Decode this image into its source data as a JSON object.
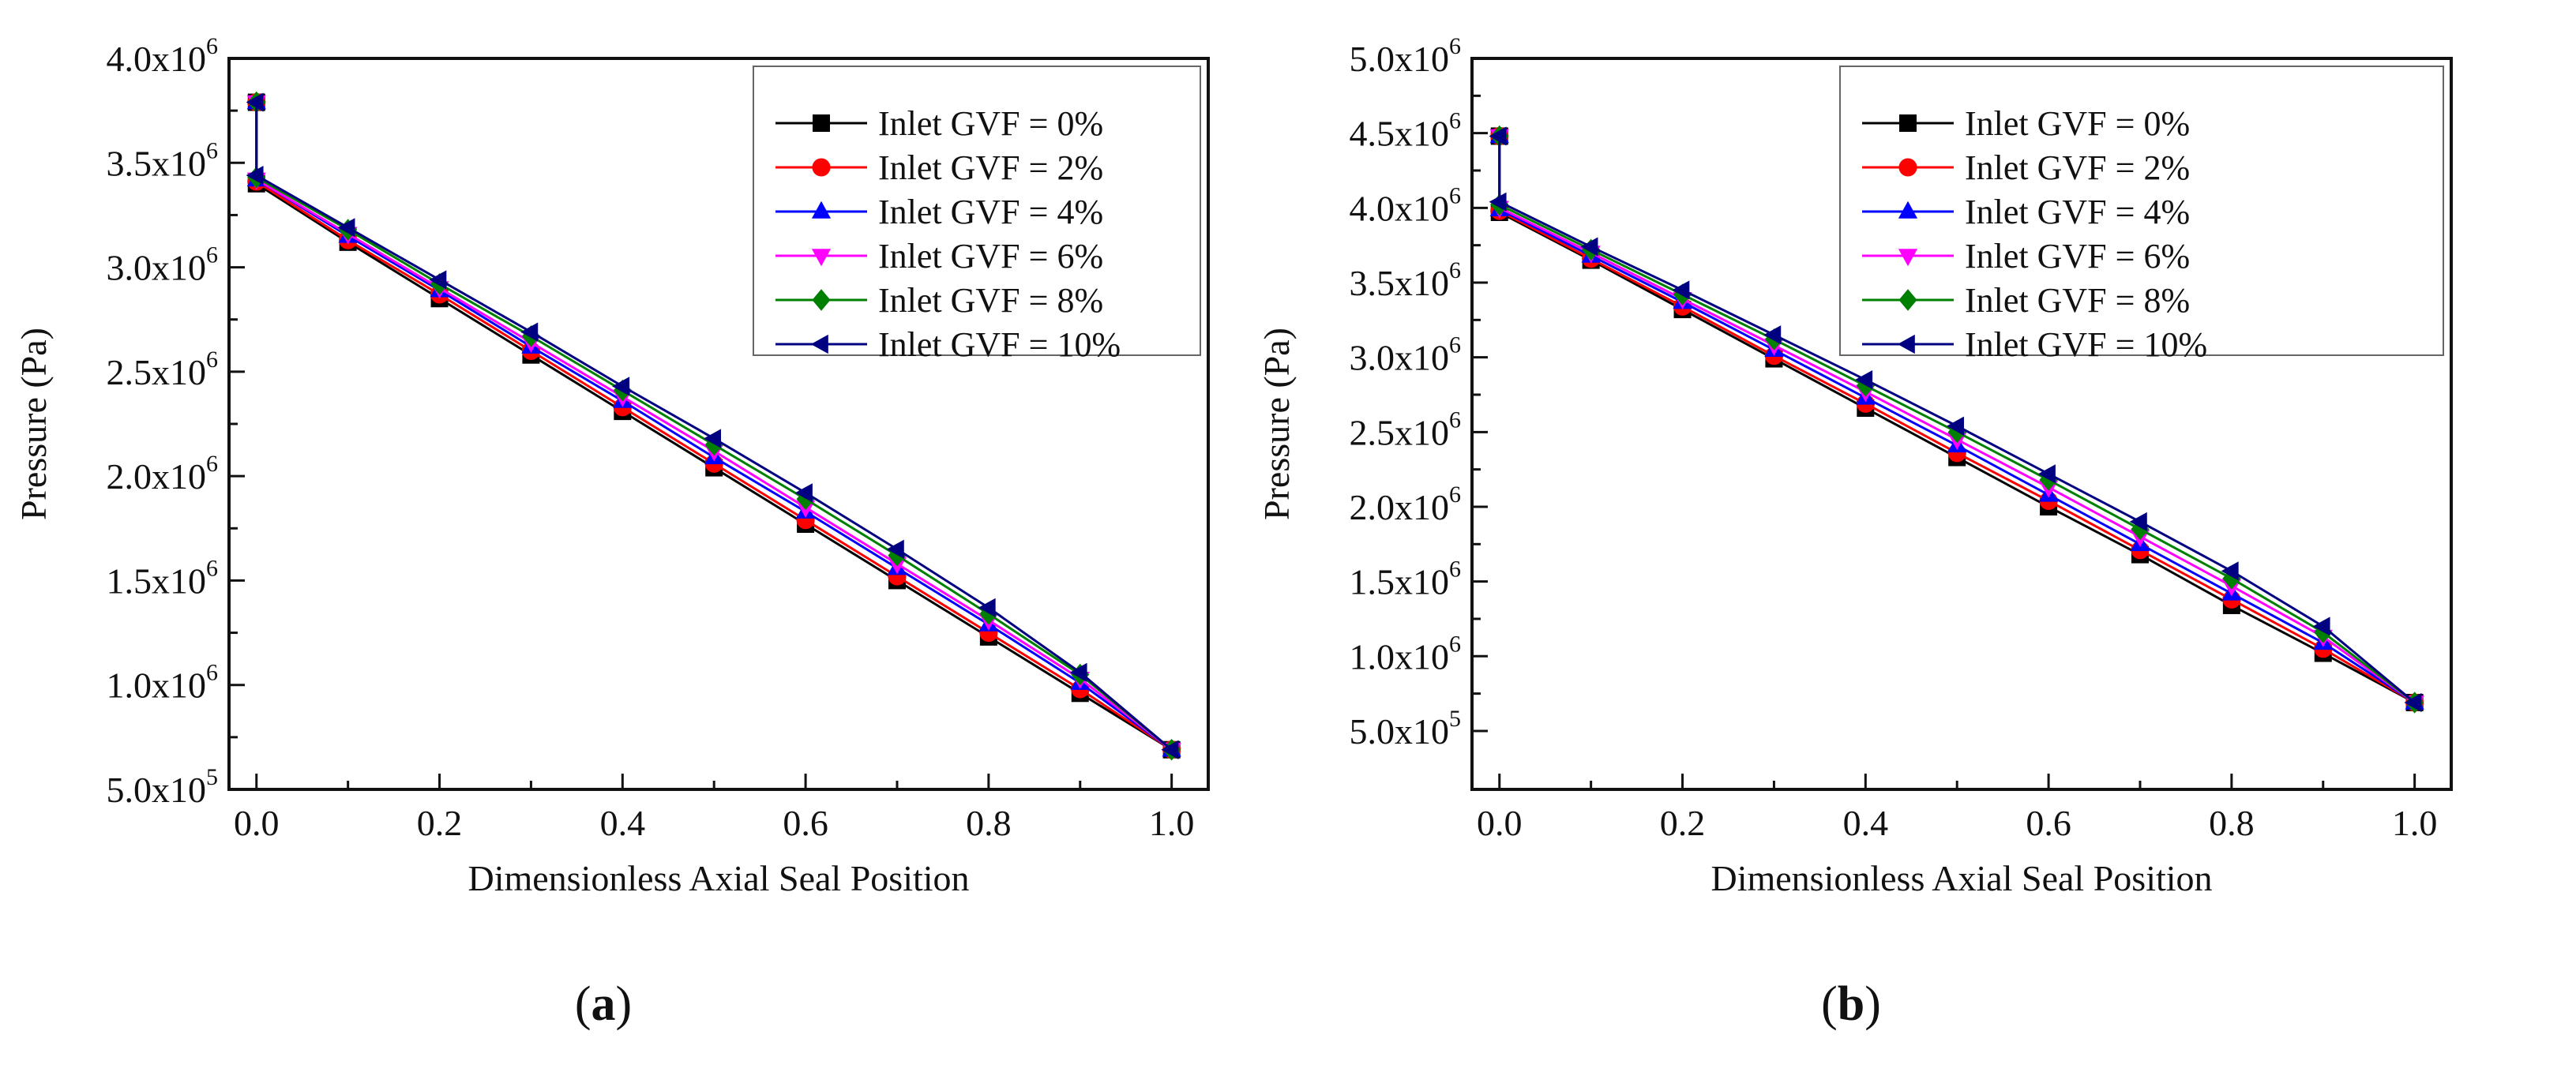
{
  "chart_data": [
    {
      "type": "line",
      "panel_label": "a",
      "xlabel": "Dimensionless Axial Seal Position",
      "ylabel": "Pressure (Pa)",
      "xlim": [
        -0.03,
        1.04
      ],
      "ylim": [
        500000,
        4000000
      ],
      "x_ticks": [
        {
          "value": 0,
          "label": "0.0"
        },
        {
          "value": 0.2,
          "label": "0.2"
        },
        {
          "value": 0.4,
          "label": "0.4"
        },
        {
          "value": 0.6,
          "label": "0.6"
        },
        {
          "value": 0.8,
          "label": "0.8"
        },
        {
          "value": 1.0,
          "label": "1.0"
        }
      ],
      "y_ticks": [
        {
          "value": 500000,
          "mantissa": "5.0x10",
          "exp": "5"
        },
        {
          "value": 1000000,
          "mantissa": "1.0x10",
          "exp": "6"
        },
        {
          "value": 1500000,
          "mantissa": "1.5x10",
          "exp": "6"
        },
        {
          "value": 2000000,
          "mantissa": "2.0x10",
          "exp": "6"
        },
        {
          "value": 2500000,
          "mantissa": "2.5x10",
          "exp": "6"
        },
        {
          "value": 3000000,
          "mantissa": "3.0x10",
          "exp": "6"
        },
        {
          "value": 3500000,
          "mantissa": "3.5x10",
          "exp": "6"
        },
        {
          "value": 4000000,
          "mantissa": "4.0x10",
          "exp": "6"
        }
      ],
      "legend_position": "top-right",
      "x": [
        0,
        0,
        0.1,
        0.2,
        0.3,
        0.4,
        0.5,
        0.6,
        0.7,
        0.8,
        0.9,
        1.0
      ],
      "series": [
        {
          "name": "Inlet GVF = 0%",
          "color": "#000000",
          "marker": "square",
          "values": [
            3790000,
            3400000,
            3120000,
            2850000,
            2580000,
            2310000,
            2040000,
            1770000,
            1500000,
            1230000,
            960000,
            690000
          ]
        },
        {
          "name": "Inlet GVF = 2%",
          "color": "#ff0000",
          "marker": "circle",
          "values": [
            3790000,
            3410000,
            3130000,
            2870000,
            2600000,
            2330000,
            2060000,
            1790000,
            1520000,
            1250000,
            980000,
            690000
          ]
        },
        {
          "name": "Inlet GVF = 4%",
          "color": "#0000ff",
          "marker": "triangle-up",
          "values": [
            3790000,
            3420000,
            3150000,
            2890000,
            2620000,
            2360000,
            2090000,
            1830000,
            1560000,
            1290000,
            1010000,
            690000
          ]
        },
        {
          "name": "Inlet GVF = 6%",
          "color": "#ff00ff",
          "marker": "triangle-down",
          "values": [
            3790000,
            3420000,
            3160000,
            2900000,
            2640000,
            2380000,
            2120000,
            1850000,
            1580000,
            1310000,
            1030000,
            690000
          ]
        },
        {
          "name": "Inlet GVF = 8%",
          "color": "#008000",
          "marker": "diamond",
          "values": [
            3790000,
            3430000,
            3180000,
            2920000,
            2670000,
            2410000,
            2150000,
            1890000,
            1620000,
            1340000,
            1050000,
            690000
          ]
        },
        {
          "name": "Inlet GVF = 10%",
          "color": "#000080",
          "marker": "triangle-left",
          "values": [
            3790000,
            3440000,
            3190000,
            2940000,
            2690000,
            2430000,
            2180000,
            1920000,
            1650000,
            1370000,
            1060000,
            690000
          ]
        }
      ]
    },
    {
      "type": "line",
      "panel_label": "b",
      "xlabel": "Dimensionless Axial Seal Position",
      "ylabel": "Pressure (Pa)",
      "xlim": [
        -0.03,
        1.04
      ],
      "ylim": [
        109000,
        5000000
      ],
      "x_ticks": [
        {
          "value": 0,
          "label": "0.0"
        },
        {
          "value": 0.2,
          "label": "0.2"
        },
        {
          "value": 0.4,
          "label": "0.4"
        },
        {
          "value": 0.6,
          "label": "0.6"
        },
        {
          "value": 0.8,
          "label": "0.8"
        },
        {
          "value": 1.0,
          "label": "1.0"
        }
      ],
      "y_ticks": [
        {
          "value": 500000,
          "mantissa": "5.0x10",
          "exp": "5"
        },
        {
          "value": 1000000,
          "mantissa": "1.0x10",
          "exp": "6"
        },
        {
          "value": 1500000,
          "mantissa": "1.5x10",
          "exp": "6"
        },
        {
          "value": 2000000,
          "mantissa": "2.0x10",
          "exp": "6"
        },
        {
          "value": 2500000,
          "mantissa": "2.5x10",
          "exp": "6"
        },
        {
          "value": 3000000,
          "mantissa": "3.0x10",
          "exp": "6"
        },
        {
          "value": 3500000,
          "mantissa": "3.5x10",
          "exp": "6"
        },
        {
          "value": 4000000,
          "mantissa": "4.0x10",
          "exp": "6"
        },
        {
          "value": 4500000,
          "mantissa": "4.5x10",
          "exp": "6"
        },
        {
          "value": 5000000,
          "mantissa": "5.0x10",
          "exp": "6"
        }
      ],
      "legend_position": "top-right",
      "x": [
        0,
        0,
        0.1,
        0.2,
        0.3,
        0.4,
        0.5,
        0.6,
        0.7,
        0.8,
        0.9,
        1.0
      ],
      "series": [
        {
          "name": "Inlet GVF = 0%",
          "color": "#000000",
          "marker": "square",
          "values": [
            4480000,
            3970000,
            3650000,
            3320000,
            2990000,
            2660000,
            2330000,
            2000000,
            1680000,
            1340000,
            1020000,
            690000
          ]
        },
        {
          "name": "Inlet GVF = 2%",
          "color": "#ff0000",
          "marker": "circle",
          "values": [
            4480000,
            3980000,
            3660000,
            3340000,
            3010000,
            2690000,
            2360000,
            2040000,
            1710000,
            1380000,
            1050000,
            690000
          ]
        },
        {
          "name": "Inlet GVF = 4%",
          "color": "#0000ff",
          "marker": "triangle-up",
          "values": [
            4480000,
            3990000,
            3680000,
            3370000,
            3050000,
            2730000,
            2410000,
            2080000,
            1750000,
            1420000,
            1090000,
            690000
          ]
        },
        {
          "name": "Inlet GVF = 6%",
          "color": "#ff00ff",
          "marker": "triangle-down",
          "values": [
            4480000,
            4000000,
            3700000,
            3390000,
            3080000,
            2770000,
            2450000,
            2130000,
            1800000,
            1470000,
            1130000,
            690000
          ]
        },
        {
          "name": "Inlet GVF = 8%",
          "color": "#008000",
          "marker": "diamond",
          "values": [
            4480000,
            4020000,
            3720000,
            3420000,
            3120000,
            2810000,
            2500000,
            2180000,
            1850000,
            1520000,
            1160000,
            690000
          ]
        },
        {
          "name": "Inlet GVF = 10%",
          "color": "#000080",
          "marker": "triangle-left",
          "values": [
            4480000,
            4040000,
            3740000,
            3450000,
            3150000,
            2850000,
            2540000,
            2220000,
            1900000,
            1570000,
            1200000,
            690000
          ]
        }
      ]
    }
  ]
}
